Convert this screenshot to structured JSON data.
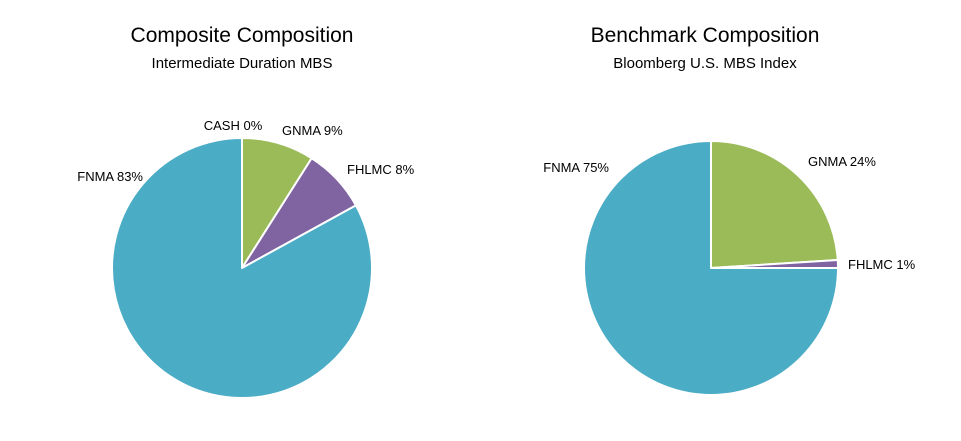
{
  "chart_data": [
    {
      "type": "pie",
      "title": "Composite Composition",
      "subtitle": "Intermediate Duration MBS",
      "slices": [
        {
          "label": "CASH",
          "value": 0,
          "value_label": "0%",
          "color": "#4BACC6"
        },
        {
          "label": "GNMA",
          "value": 9,
          "value_label": "9%",
          "color": "#9BBB59"
        },
        {
          "label": "FHLMC",
          "value": 8,
          "value_label": "8%",
          "color": "#8064A2"
        },
        {
          "label": "FNMA",
          "value": 83,
          "value_label": "83%",
          "color": "#4BACC6"
        }
      ],
      "start_angle_deg": 0,
      "direction": "clockwise",
      "legend": "none"
    },
    {
      "type": "pie",
      "title": "Benchmark Composition",
      "subtitle": "Bloomberg U.S. MBS Index",
      "slices": [
        {
          "label": "GNMA",
          "value": 24,
          "value_label": "24%",
          "color": "#9BBB59"
        },
        {
          "label": "FHLMC",
          "value": 1,
          "value_label": "1%",
          "color": "#8064A2"
        },
        {
          "label": "FNMA",
          "value": 75,
          "value_label": "75%",
          "color": "#4BACC6"
        }
      ],
      "start_angle_deg": 0,
      "direction": "clockwise",
      "legend": "none"
    }
  ]
}
